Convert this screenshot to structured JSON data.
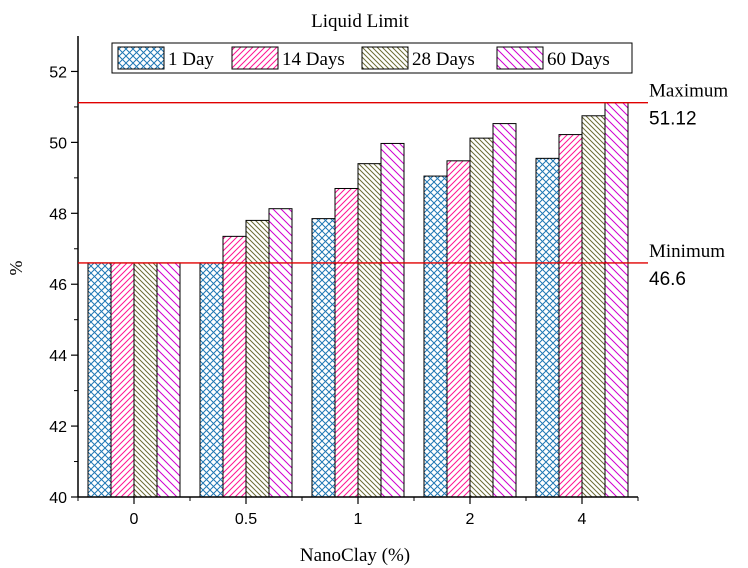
{
  "chart_data": {
    "type": "bar",
    "title": "Liquid Limit",
    "xlabel": "NanoClay (%)",
    "ylabel": "%",
    "categories": [
      "0",
      "0.5",
      "1",
      "2",
      "4"
    ],
    "ylim": [
      40,
      53
    ],
    "yticks": [
      40,
      42,
      44,
      46,
      48,
      50,
      52
    ],
    "grid": false,
    "legend_position": "top",
    "series": [
      {
        "name": "1 Day",
        "values": [
          46.6,
          46.6,
          47.85,
          49.05,
          49.55
        ],
        "color": "#1f77b4",
        "pattern": "crosshatch"
      },
      {
        "name": "14 Days",
        "values": [
          46.6,
          47.35,
          48.7,
          49.48,
          50.22
        ],
        "color": "#ff1493",
        "pattern": "diagonal-up"
      },
      {
        "name": "28 Days",
        "values": [
          46.6,
          47.8,
          49.4,
          50.12,
          50.75
        ],
        "color": "#6b6b35",
        "pattern": "diagonal-down"
      },
      {
        "name": "60 Days",
        "values": [
          46.6,
          48.13,
          49.97,
          50.53,
          51.12
        ],
        "color": "#d000d0",
        "pattern": "diagonal-down"
      }
    ],
    "reference_lines": [
      {
        "label": "Maximum",
        "value_text": "51.12",
        "value": 51.12,
        "color": "#e00000"
      },
      {
        "label": "Minimum",
        "value_text": "46.6",
        "value": 46.6,
        "color": "#e00000"
      }
    ]
  }
}
